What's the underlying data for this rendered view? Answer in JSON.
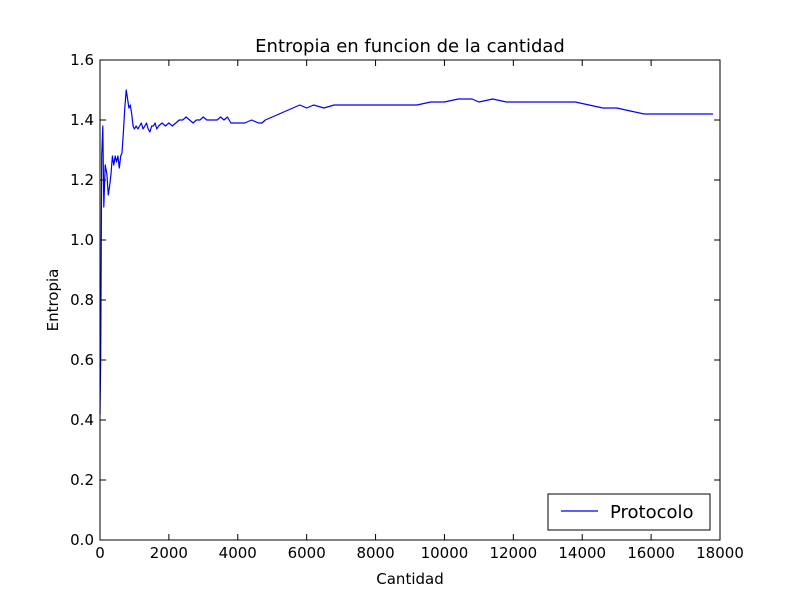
{
  "chart_data": {
    "type": "line",
    "title": "Entropia en funcion de la cantidad",
    "xlabel": "Cantidad",
    "ylabel": "Entropia",
    "xlim": [
      0,
      18000
    ],
    "ylim": [
      0.0,
      1.6
    ],
    "xticks": [
      0,
      2000,
      4000,
      6000,
      8000,
      10000,
      12000,
      14000,
      16000,
      18000
    ],
    "xtick_labels": [
      "0",
      "2000",
      "4000",
      "6000",
      "8000",
      "10000",
      "12000",
      "14000",
      "16000",
      "18000"
    ],
    "yticks": [
      0.0,
      0.2,
      0.4,
      0.6,
      0.8,
      1.0,
      1.2,
      1.4,
      1.6
    ],
    "ytick_labels": [
      "0.0",
      "0.2",
      "0.4",
      "0.6",
      "0.8",
      "1.0",
      "1.2",
      "1.4",
      "1.6"
    ],
    "grid": false,
    "legend_position": "lower-right",
    "series": [
      {
        "name": "Protocolo",
        "color": "#0000ff",
        "x": [
          0,
          20,
          50,
          80,
          110,
          150,
          200,
          240,
          280,
          320,
          360,
          400,
          440,
          480,
          520,
          560,
          600,
          640,
          680,
          720,
          760,
          800,
          840,
          880,
          920,
          960,
          1000,
          1050,
          1100,
          1150,
          1200,
          1250,
          1300,
          1350,
          1400,
          1450,
          1500,
          1550,
          1600,
          1650,
          1700,
          1800,
          1900,
          2000,
          2100,
          2200,
          2300,
          2400,
          2500,
          2600,
          2700,
          2800,
          2900,
          3000,
          3100,
          3200,
          3300,
          3400,
          3500,
          3600,
          3700,
          3800,
          3900,
          4000,
          4200,
          4400,
          4600,
          4700,
          4800,
          5000,
          5200,
          5400,
          5600,
          5800,
          6000,
          6200,
          6500,
          6800,
          7000,
          7300,
          7600,
          8000,
          8400,
          8800,
          9200,
          9600,
          10000,
          10400,
          10800,
          11000,
          11400,
          11800,
          12200,
          12600,
          13000,
          13400,
          13800,
          14200,
          14600,
          15000,
          15400,
          15800,
          16000,
          16400,
          16800,
          17200,
          17600,
          17800
        ],
        "y": [
          0.42,
          0.6,
          1.28,
          1.38,
          1.11,
          1.25,
          1.22,
          1.15,
          1.18,
          1.22,
          1.28,
          1.25,
          1.28,
          1.26,
          1.28,
          1.24,
          1.28,
          1.29,
          1.36,
          1.44,
          1.5,
          1.47,
          1.44,
          1.45,
          1.42,
          1.38,
          1.37,
          1.38,
          1.37,
          1.38,
          1.39,
          1.37,
          1.38,
          1.39,
          1.37,
          1.36,
          1.38,
          1.38,
          1.39,
          1.37,
          1.38,
          1.39,
          1.38,
          1.39,
          1.38,
          1.39,
          1.4,
          1.4,
          1.41,
          1.4,
          1.39,
          1.4,
          1.4,
          1.41,
          1.4,
          1.4,
          1.4,
          1.4,
          1.41,
          1.4,
          1.41,
          1.39,
          1.39,
          1.39,
          1.39,
          1.4,
          1.39,
          1.39,
          1.4,
          1.41,
          1.42,
          1.43,
          1.44,
          1.45,
          1.44,
          1.45,
          1.44,
          1.45,
          1.45,
          1.45,
          1.45,
          1.45,
          1.45,
          1.45,
          1.45,
          1.46,
          1.46,
          1.47,
          1.47,
          1.46,
          1.47,
          1.46,
          1.46,
          1.46,
          1.46,
          1.46,
          1.46,
          1.45,
          1.44,
          1.44,
          1.43,
          1.42,
          1.42,
          1.42,
          1.42,
          1.42,
          1.42,
          1.42
        ]
      }
    ]
  }
}
